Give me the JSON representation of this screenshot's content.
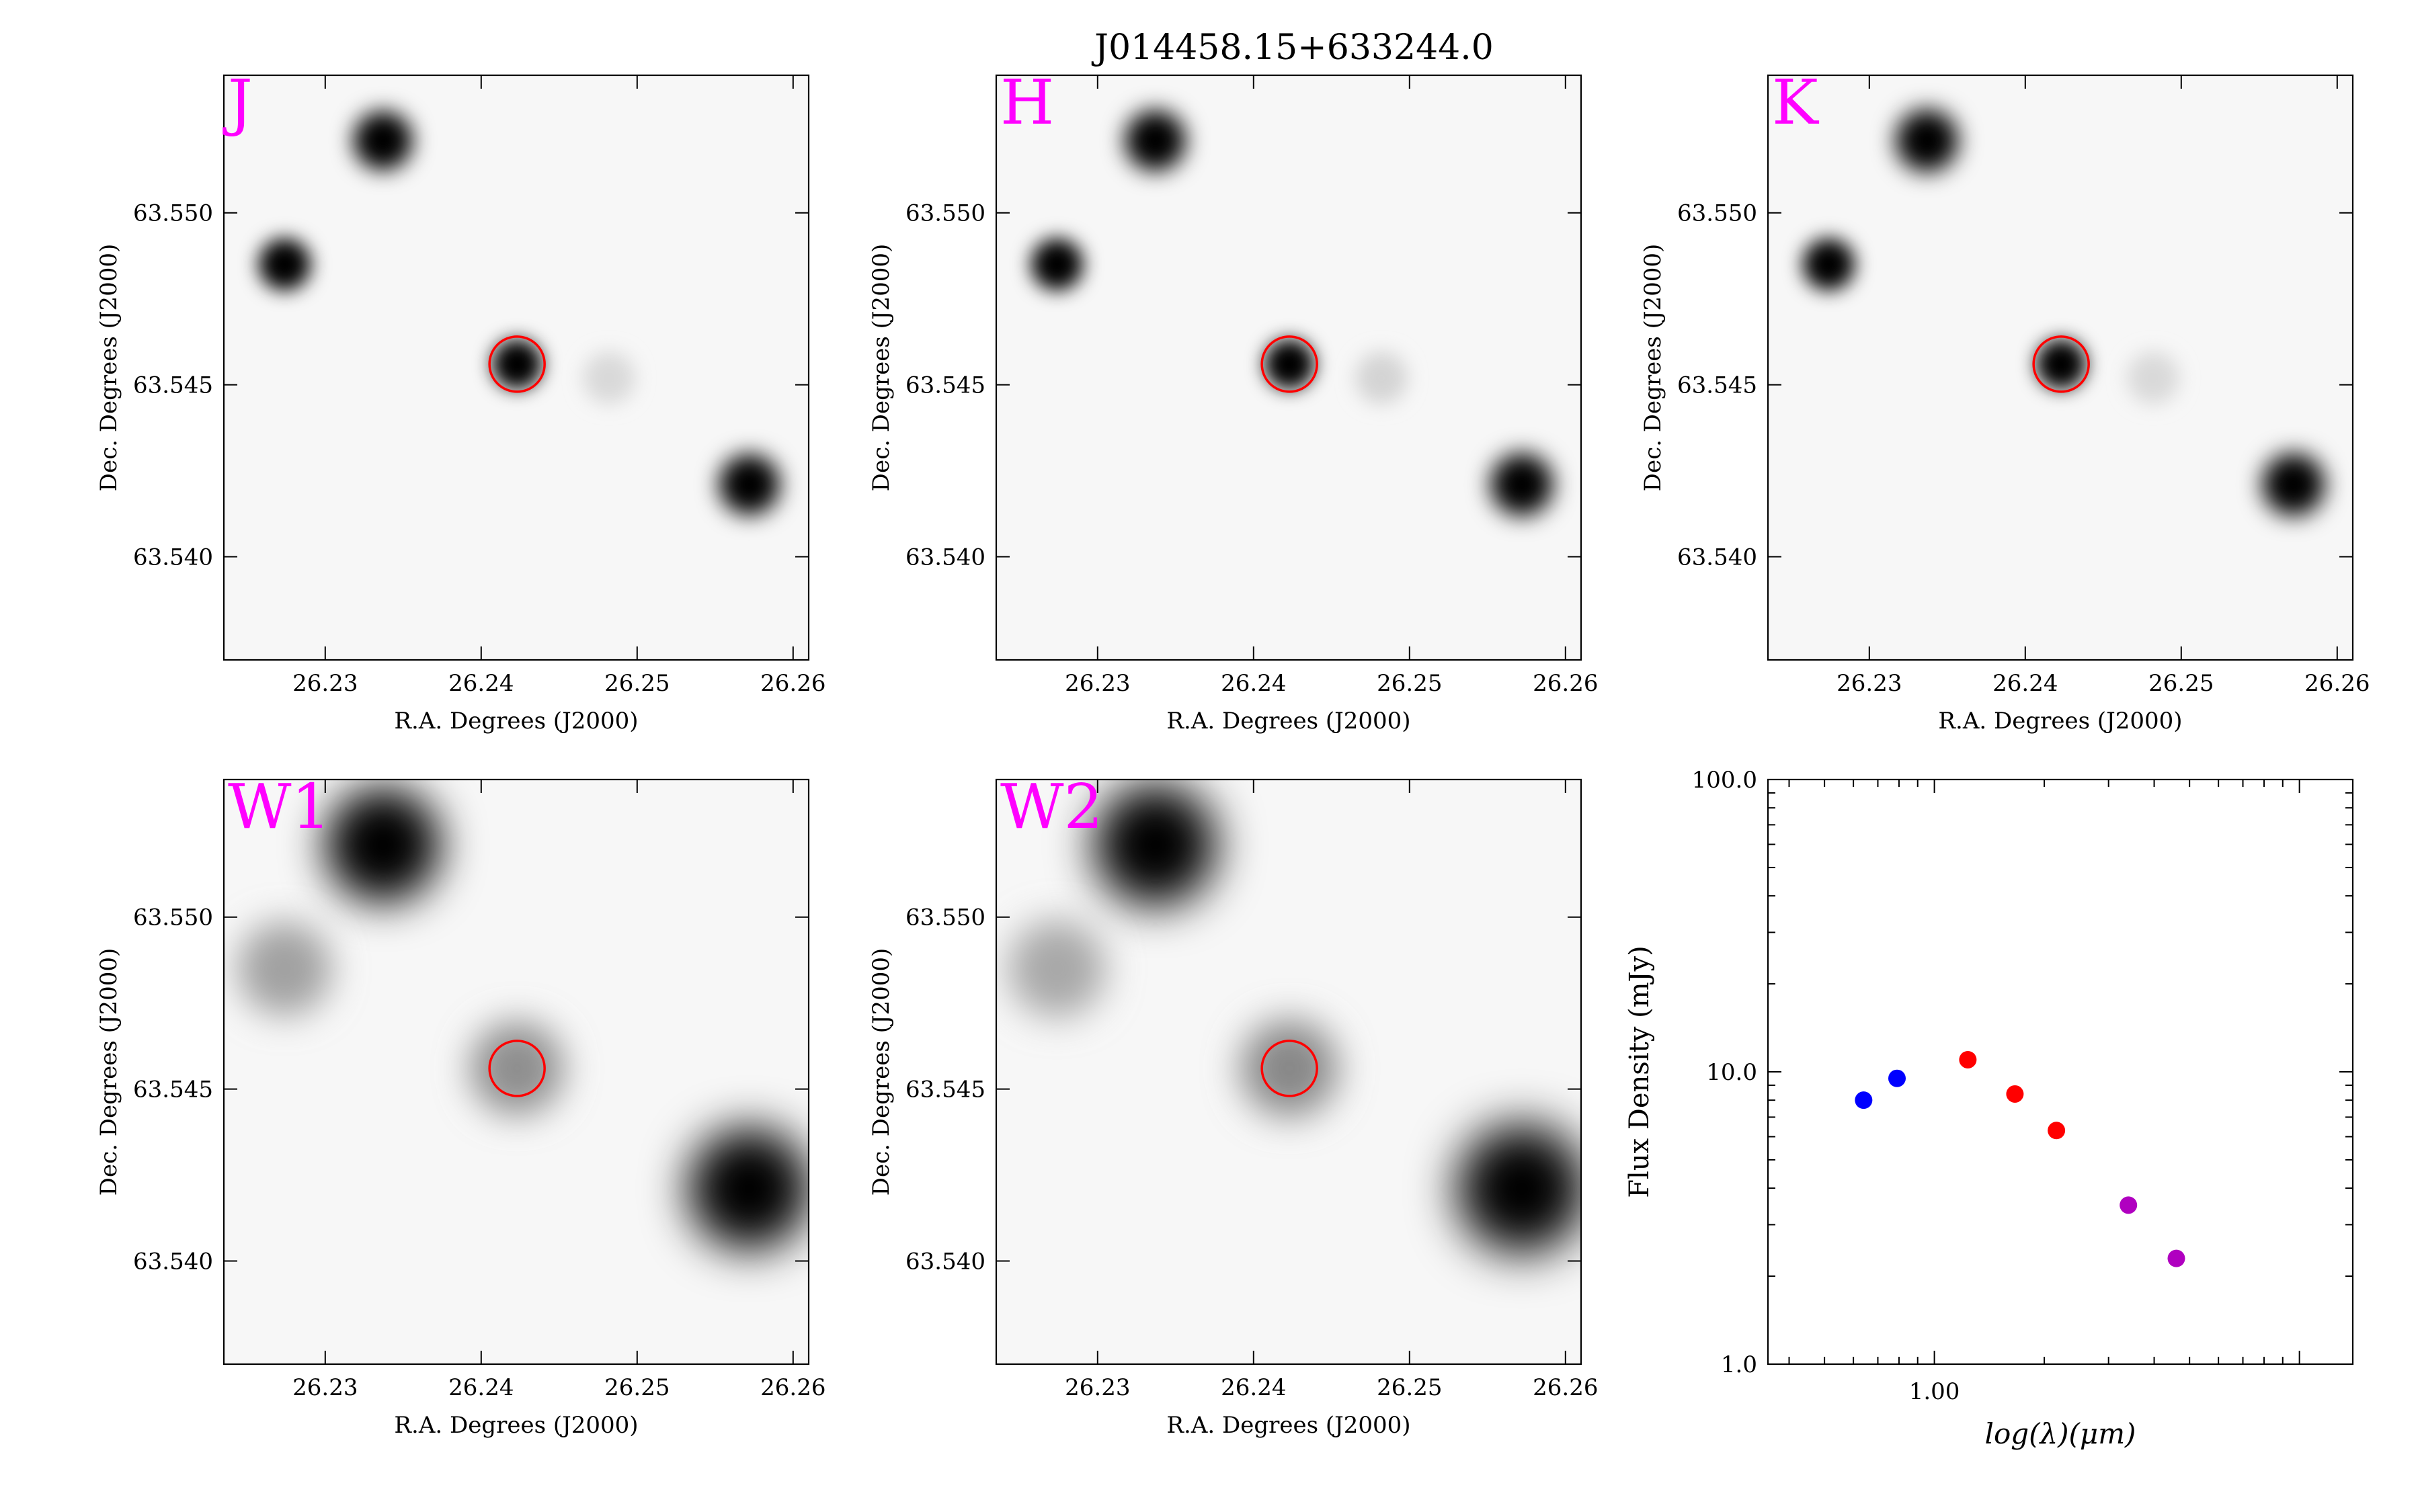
{
  "figure_title": "J014458.15+633244.0",
  "colors": {
    "band_label": "#ff00ff",
    "marker_circle": "#ff0000",
    "sed_2mass": "#0000ff",
    "sed_wise": "#ff0000",
    "sed_other": "#b000c0"
  },
  "chart_data": [
    {
      "type": "image",
      "band": "J",
      "xlabel": "R.A. Degrees (J2000)",
      "ylabel": "Dec. Degrees (J2000)",
      "xlim": [
        26.2235,
        26.261
      ],
      "ylim": [
        63.537,
        63.554
      ],
      "xticks": [
        "26.23",
        "26.24",
        "26.25",
        "26.26"
      ],
      "yticks": [
        "63.540",
        "63.545",
        "63.550"
      ],
      "target": {
        "ra": 26.2423,
        "dec": 63.5456
      },
      "sources": [
        {
          "ra": 26.2337,
          "dec": 63.5521,
          "brightness": 1.0,
          "blur": 1.0
        },
        {
          "ra": 26.2274,
          "dec": 63.5485,
          "brightness": 1.0,
          "blur": 0.8
        },
        {
          "ra": 26.2423,
          "dec": 63.5456,
          "brightness": 1.0,
          "blur": 0.75
        },
        {
          "ra": 26.2572,
          "dec": 63.5421,
          "brightness": 1.0,
          "blur": 1.05
        },
        {
          "ra": 26.2482,
          "dec": 63.5452,
          "brightness": 0.12,
          "blur": 0.8
        }
      ]
    },
    {
      "type": "image",
      "band": "H",
      "xlabel": "R.A. Degrees (J2000)",
      "ylabel": "Dec. Degrees (J2000)",
      "xlim": [
        26.2235,
        26.261
      ],
      "ylim": [
        63.537,
        63.554
      ],
      "xticks": [
        "26.23",
        "26.24",
        "26.25",
        "26.26"
      ],
      "yticks": [
        "63.540",
        "63.545",
        "63.550"
      ],
      "target": {
        "ra": 26.2423,
        "dec": 63.5456
      },
      "sources": [
        {
          "ra": 26.2337,
          "dec": 63.5521,
          "brightness": 1.0,
          "blur": 1.05
        },
        {
          "ra": 26.2274,
          "dec": 63.5485,
          "brightness": 1.0,
          "blur": 0.8
        },
        {
          "ra": 26.2423,
          "dec": 63.5456,
          "brightness": 1.0,
          "blur": 0.75
        },
        {
          "ra": 26.2572,
          "dec": 63.5421,
          "brightness": 1.0,
          "blur": 1.1
        },
        {
          "ra": 26.2482,
          "dec": 63.5452,
          "brightness": 0.14,
          "blur": 0.8
        }
      ]
    },
    {
      "type": "image",
      "band": "K",
      "xlabel": "R.A. Degrees (J2000)",
      "ylabel": "Dec. Degrees (J2000)",
      "xlim": [
        26.2235,
        26.261
      ],
      "ylim": [
        63.537,
        63.554
      ],
      "xticks": [
        "26.23",
        "26.24",
        "26.25",
        "26.26"
      ],
      "yticks": [
        "63.540",
        "63.545",
        "63.550"
      ],
      "target": {
        "ra": 26.2423,
        "dec": 63.5456
      },
      "sources": [
        {
          "ra": 26.2337,
          "dec": 63.5521,
          "brightness": 1.0,
          "blur": 1.1
        },
        {
          "ra": 26.2274,
          "dec": 63.5485,
          "brightness": 1.0,
          "blur": 0.8
        },
        {
          "ra": 26.2423,
          "dec": 63.5456,
          "brightness": 1.0,
          "blur": 0.75
        },
        {
          "ra": 26.2572,
          "dec": 63.5421,
          "brightness": 1.0,
          "blur": 1.1
        },
        {
          "ra": 26.2482,
          "dec": 63.5452,
          "brightness": 0.12,
          "blur": 0.8
        }
      ]
    },
    {
      "type": "image",
      "band": "W1",
      "xlabel": "R.A. Degrees (J2000)",
      "ylabel": "Dec. Degrees (J2000)",
      "xlim": [
        26.2235,
        26.261
      ],
      "ylim": [
        63.537,
        63.554
      ],
      "xticks": [
        "26.23",
        "26.24",
        "26.25",
        "26.26"
      ],
      "yticks": [
        "63.540",
        "63.545",
        "63.550"
      ],
      "target": {
        "ra": 26.2423,
        "dec": 63.5456
      },
      "sources": [
        {
          "ra": 26.2337,
          "dec": 63.5521,
          "brightness": 1.0,
          "blur": 2.6
        },
        {
          "ra": 26.2274,
          "dec": 63.5485,
          "brightness": 0.35,
          "blur": 2.0
        },
        {
          "ra": 26.2423,
          "dec": 63.5456,
          "brightness": 0.42,
          "blur": 2.0
        },
        {
          "ra": 26.2572,
          "dec": 63.5421,
          "brightness": 1.0,
          "blur": 2.8
        }
      ]
    },
    {
      "type": "image",
      "band": "W2",
      "xlabel": "R.A. Degrees (J2000)",
      "ylabel": "Dec. Degrees (J2000)",
      "xlim": [
        26.2235,
        26.261
      ],
      "ylim": [
        63.537,
        63.554
      ],
      "xticks": [
        "26.23",
        "26.24",
        "26.25",
        "26.26"
      ],
      "yticks": [
        "63.540",
        "63.545",
        "63.550"
      ],
      "target": {
        "ra": 26.2423,
        "dec": 63.5456
      },
      "sources": [
        {
          "ra": 26.2337,
          "dec": 63.5521,
          "brightness": 1.0,
          "blur": 2.8
        },
        {
          "ra": 26.2274,
          "dec": 63.5485,
          "brightness": 0.32,
          "blur": 2.1
        },
        {
          "ra": 26.2423,
          "dec": 63.5456,
          "brightness": 0.45,
          "blur": 2.1
        },
        {
          "ra": 26.2572,
          "dec": 63.5421,
          "brightness": 1.0,
          "blur": 3.0
        }
      ]
    },
    {
      "type": "scatter",
      "xlabel": "log(λ)(μm)",
      "ylabel": "Flux Density (mJy)",
      "xscale": "log",
      "yscale": "log",
      "xlim": [
        0.35,
        14.0
      ],
      "ylim": [
        1.0,
        100.0
      ],
      "xticks": [
        "1.00"
      ],
      "yticks": [
        "1.0",
        "10.0",
        "100.0"
      ],
      "grid": false,
      "series": [
        {
          "color": "#0000ff",
          "x": [
            0.64,
            0.79
          ],
          "y": [
            8.0,
            9.5
          ]
        },
        {
          "color": "#ff0000",
          "x": [
            1.235,
            1.662,
            2.159
          ],
          "y": [
            11.0,
            8.4,
            6.3
          ]
        },
        {
          "color": "#b000c0",
          "x": [
            3.4,
            4.6
          ],
          "y": [
            3.5,
            2.3
          ]
        }
      ]
    }
  ]
}
